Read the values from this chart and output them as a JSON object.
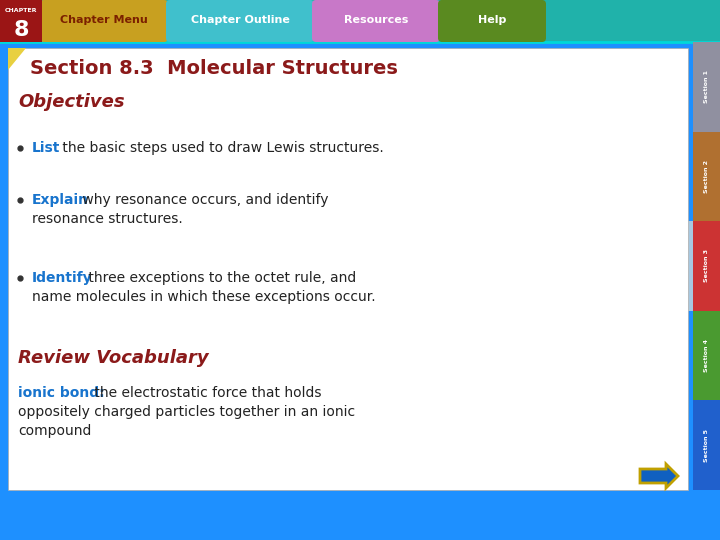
{
  "title": "Section 8.3  Molecular Structures",
  "title_color": "#8B1A1A",
  "objectives_label": "Objectives",
  "objectives_color": "#8B1A1A",
  "bullet_keyword_color": "#1874CD",
  "bullet_text_color": "#222222",
  "bullets": [
    {
      "keyword": "List",
      "rest": " the basic steps used to draw Lewis structures."
    },
    {
      "keyword": "Explain",
      "rest": " why resonance occurs, and identify\nresonance structures."
    },
    {
      "keyword": "Identify",
      "rest": " three exceptions to the octet rule, and\nname molecules in which these exceptions occur."
    }
  ],
  "review_label": "Review Vocabulary",
  "review_color": "#8B1A1A",
  "ionic_keyword": "ionic bond:",
  "ionic_keyword_color": "#1874CD",
  "ionic_rest_line1": " the electrostatic force that holds",
  "ionic_rest_line2": "oppositely charged particles together in an ionic",
  "ionic_rest_line3": "compound",
  "ionic_rest_color": "#222222",
  "bg_outer": "#1E90FF",
  "bg_top_bar": "#20B2AA",
  "chapter_box_color": "#9B1515",
  "nav_bar_bg": "#20B2AA",
  "btn_menu_color": "#C8A020",
  "btn_menu_text": "#7B2000",
  "btn_outline_color": "#40C0CC",
  "btn_resources_color": "#C878C8",
  "btn_help_color": "#5A8A20",
  "sidebar_colors": [
    "#9090A0",
    "#B07030",
    "#CC3333",
    "#4A9A30",
    "#2060CC"
  ],
  "sidebar_labels": [
    "Section 1",
    "Section 2",
    "Section 3",
    "Section 4",
    "Section 5"
  ],
  "sidebar_active": 2,
  "sidebar_active_accent": "#A8C8E0",
  "slide_bg": "#FFFFFF",
  "slide_border": "#AAAAAA",
  "title_triangle_color": "#E8D040",
  "arrow_fill": "#1060C0",
  "arrow_outline": "#C0A000",
  "bottom_bar_color": "#1E90FF"
}
